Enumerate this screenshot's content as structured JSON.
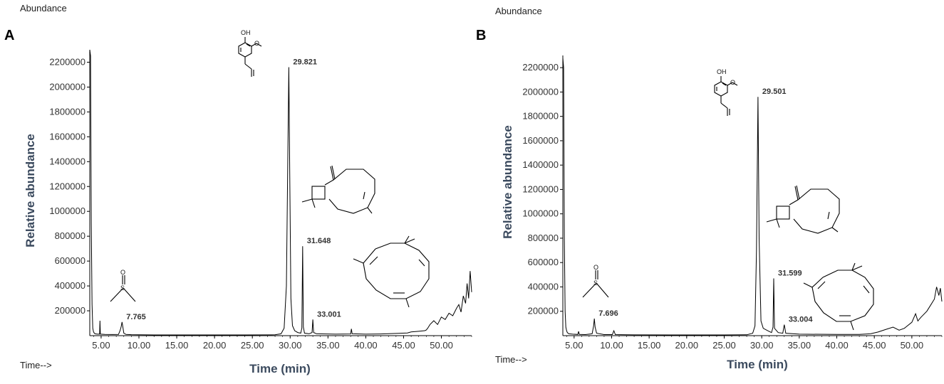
{
  "chart_data": [
    {
      "type": "line",
      "panel_label": "A",
      "abundance_label": "Abundance",
      "time_label": "Time-->",
      "xlabel": "Time (min)",
      "ylabel": "Relative abundance",
      "xlim": [
        3.5,
        54
      ],
      "ylim": [
        0,
        2300000
      ],
      "x_ticks": [
        "5.00",
        "10.00",
        "15.00",
        "20.00",
        "25.00",
        "30.00",
        "35.00",
        "40.00",
        "45.00",
        "50.00"
      ],
      "y_ticks": [
        "200000",
        "400000",
        "600000",
        "800000",
        "1000000",
        "1200000",
        "1400000",
        "1600000",
        "1800000",
        "2000000",
        "2200000"
      ],
      "peaks": [
        {
          "time": 7.765,
          "label": "7.765",
          "height": 110000
        },
        {
          "time": 29.821,
          "label": "29.821",
          "height": 2160000
        },
        {
          "time": 31.648,
          "label": "31.648",
          "height": 720000
        },
        {
          "time": 33.001,
          "label": "33.001",
          "height": 130000
        }
      ],
      "series": [
        {
          "x": [
            3.5,
            3.6,
            3.7,
            3.8,
            3.9,
            4.0,
            4.1,
            4.2,
            4.5,
            4.8,
            4.85,
            4.9,
            5.5,
            6.5,
            7.3,
            7.5,
            7.65,
            7.765,
            7.9,
            8.0,
            8.3,
            9.0,
            12,
            18,
            24,
            28,
            28.8,
            29.2,
            29.5,
            29.7,
            29.821,
            29.95,
            30.1,
            30.3,
            30.6,
            31.0,
            31.4,
            31.55,
            31.648,
            31.75,
            31.9,
            32.5,
            32.9,
            33.001,
            33.1,
            33.5,
            36,
            38.0,
            38.1,
            38.2,
            40,
            42,
            44,
            45.5,
            46,
            47,
            47.8,
            48.0,
            48.2,
            48.5,
            49,
            49.5,
            50,
            50.5,
            51,
            51.5,
            52,
            52.3,
            52.6,
            52.9,
            53.2,
            53.4,
            53.6,
            53.8,
            54.0
          ],
          "y": [
            2300000,
            2250000,
            900000,
            250000,
            60000,
            30000,
            20000,
            15000,
            12000,
            12000,
            120000,
            12000,
            10000,
            9000,
            10000,
            40000,
            70000,
            110000,
            60000,
            20000,
            10000,
            8000,
            6000,
            6000,
            6000,
            7000,
            15000,
            60000,
            400000,
            1500000,
            2160000,
            1300000,
            300000,
            80000,
            40000,
            25000,
            20000,
            60000,
            720000,
            70000,
            20000,
            15000,
            25000,
            130000,
            25000,
            15000,
            12000,
            14000,
            55000,
            15000,
            12000,
            14000,
            18000,
            22000,
            30000,
            35000,
            40000,
            45000,
            60000,
            90000,
            120000,
            90000,
            150000,
            130000,
            180000,
            160000,
            220000,
            250000,
            190000,
            320000,
            260000,
            420000,
            300000,
            520000,
            350000
          ]
        }
      ]
    },
    {
      "type": "line",
      "panel_label": "B",
      "abundance_label": "Abundance",
      "time_label": "Time-->",
      "xlabel": "Time (min)",
      "ylabel": "Relative abundance",
      "xlim": [
        3.5,
        54
      ],
      "ylim": [
        0,
        2300000
      ],
      "x_ticks": [
        "5.00",
        "10.00",
        "15.00",
        "20.00",
        "25.00",
        "30.00",
        "35.00",
        "40.00",
        "45.00",
        "50.00"
      ],
      "y_ticks": [
        "200000",
        "400000",
        "600000",
        "800000",
        "1000000",
        "1200000",
        "1400000",
        "1600000",
        "1800000",
        "2000000",
        "2200000"
      ],
      "peaks": [
        {
          "time": 7.696,
          "label": "7.696",
          "height": 140000
        },
        {
          "time": 29.501,
          "label": "29.501",
          "height": 1960000
        },
        {
          "time": 31.599,
          "label": "31.599",
          "height": 470000
        },
        {
          "time": 33.004,
          "label": "33.004",
          "height": 90000
        }
      ],
      "series": [
        {
          "x": [
            3.5,
            3.6,
            3.7,
            3.8,
            3.9,
            4.0,
            4.1,
            4.3,
            4.8,
            5.5,
            5.6,
            5.7,
            6.5,
            7.4,
            7.6,
            7.696,
            7.8,
            8.0,
            9.0,
            10.1,
            10.3,
            10.5,
            12,
            18,
            24,
            28,
            28.8,
            29.1,
            29.3,
            29.501,
            29.65,
            29.9,
            30.2,
            30.8,
            31.3,
            31.5,
            31.599,
            31.7,
            32.2,
            32.8,
            33.004,
            33.2,
            35,
            40,
            43,
            44.5,
            45.5,
            46.5,
            47.5,
            48.3,
            49,
            50,
            50.5,
            50.8,
            51.2,
            52,
            52.5,
            53,
            53.3,
            53.6,
            53.8,
            54.0
          ],
          "y": [
            2280000,
            2200000,
            800000,
            200000,
            70000,
            40000,
            25000,
            15000,
            12000,
            10000,
            35000,
            10000,
            9000,
            15000,
            80000,
            140000,
            70000,
            20000,
            9000,
            9000,
            40000,
            9000,
            7000,
            6000,
            6000,
            7000,
            20000,
            80000,
            700000,
            1960000,
            800000,
            120000,
            60000,
            40000,
            25000,
            70000,
            470000,
            60000,
            25000,
            20000,
            90000,
            20000,
            12000,
            10000,
            10000,
            15000,
            30000,
            50000,
            70000,
            45000,
            60000,
            110000,
            180000,
            120000,
            150000,
            200000,
            250000,
            300000,
            400000,
            330000,
            390000,
            280000
          ]
        }
      ]
    }
  ],
  "structures": {
    "oh": "OH",
    "o": "O",
    "s": "S"
  }
}
